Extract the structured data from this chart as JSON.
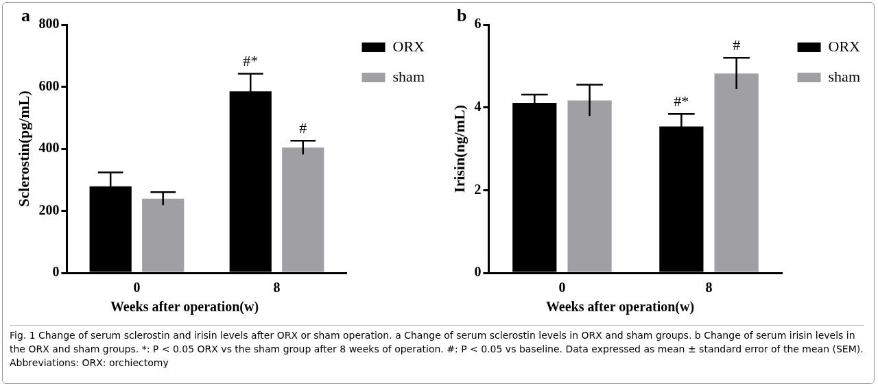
{
  "chart_data": [
    {
      "type": "bar",
      "title": "a",
      "xlabel": "Weeks after operation(w)",
      "ylabel": "Sclerostin(pg/mL)",
      "categories": [
        "0",
        "8"
      ],
      "series": [
        {
          "name": "ORX",
          "color": "#000000",
          "values": [
            279,
            585
          ],
          "errors": [
            45,
            57
          ],
          "value_labels": [
            null,
            "#*"
          ]
        },
        {
          "name": "sham",
          "color": "#a0a0a4",
          "values": [
            239,
            404
          ],
          "errors": [
            21,
            22
          ],
          "value_labels": [
            null,
            "#"
          ]
        }
      ],
      "ylim": [
        0,
        800
      ],
      "yticks": [
        0,
        200,
        400,
        600,
        800
      ],
      "grid": false,
      "legend": "top right",
      "annotations": [
        "Fig. 1  Change of serum sclerostin and irisin levels after ORX or sham operation. a Change of serum sclerostin levels in ORX and sham groups. b Change of serum irisin levels in the ORX and sham groups. *: P < 0.05 ORX vs the sham group after 8 weeks of operation. #: P < 0.05 vs baseline. Data expressed as mean ± standard error of the mean (SEM). Abbreviations: ORX: orchiectomy"
      ]
    },
    {
      "type": "bar",
      "title": "b",
      "xlabel": "Weeks after operation(w)",
      "ylabel": "Irisin(ng/mL)",
      "categories": [
        "0",
        "8"
      ],
      "series": [
        {
          "name": "ORX",
          "color": "#000000",
          "values": [
            4.11,
            3.54
          ],
          "errors": [
            0.2,
            0.3
          ],
          "value_labels": [
            null,
            "#*"
          ]
        },
        {
          "name": "sham",
          "color": "#a0a0a4",
          "values": [
            4.17,
            4.82
          ],
          "errors": [
            0.38,
            0.38
          ],
          "value_labels": [
            null,
            "#"
          ]
        }
      ],
      "ylim": [
        0,
        6
      ],
      "yticks": [
        0,
        2,
        4,
        6
      ],
      "grid": false,
      "legend": "top right"
    }
  ]
}
